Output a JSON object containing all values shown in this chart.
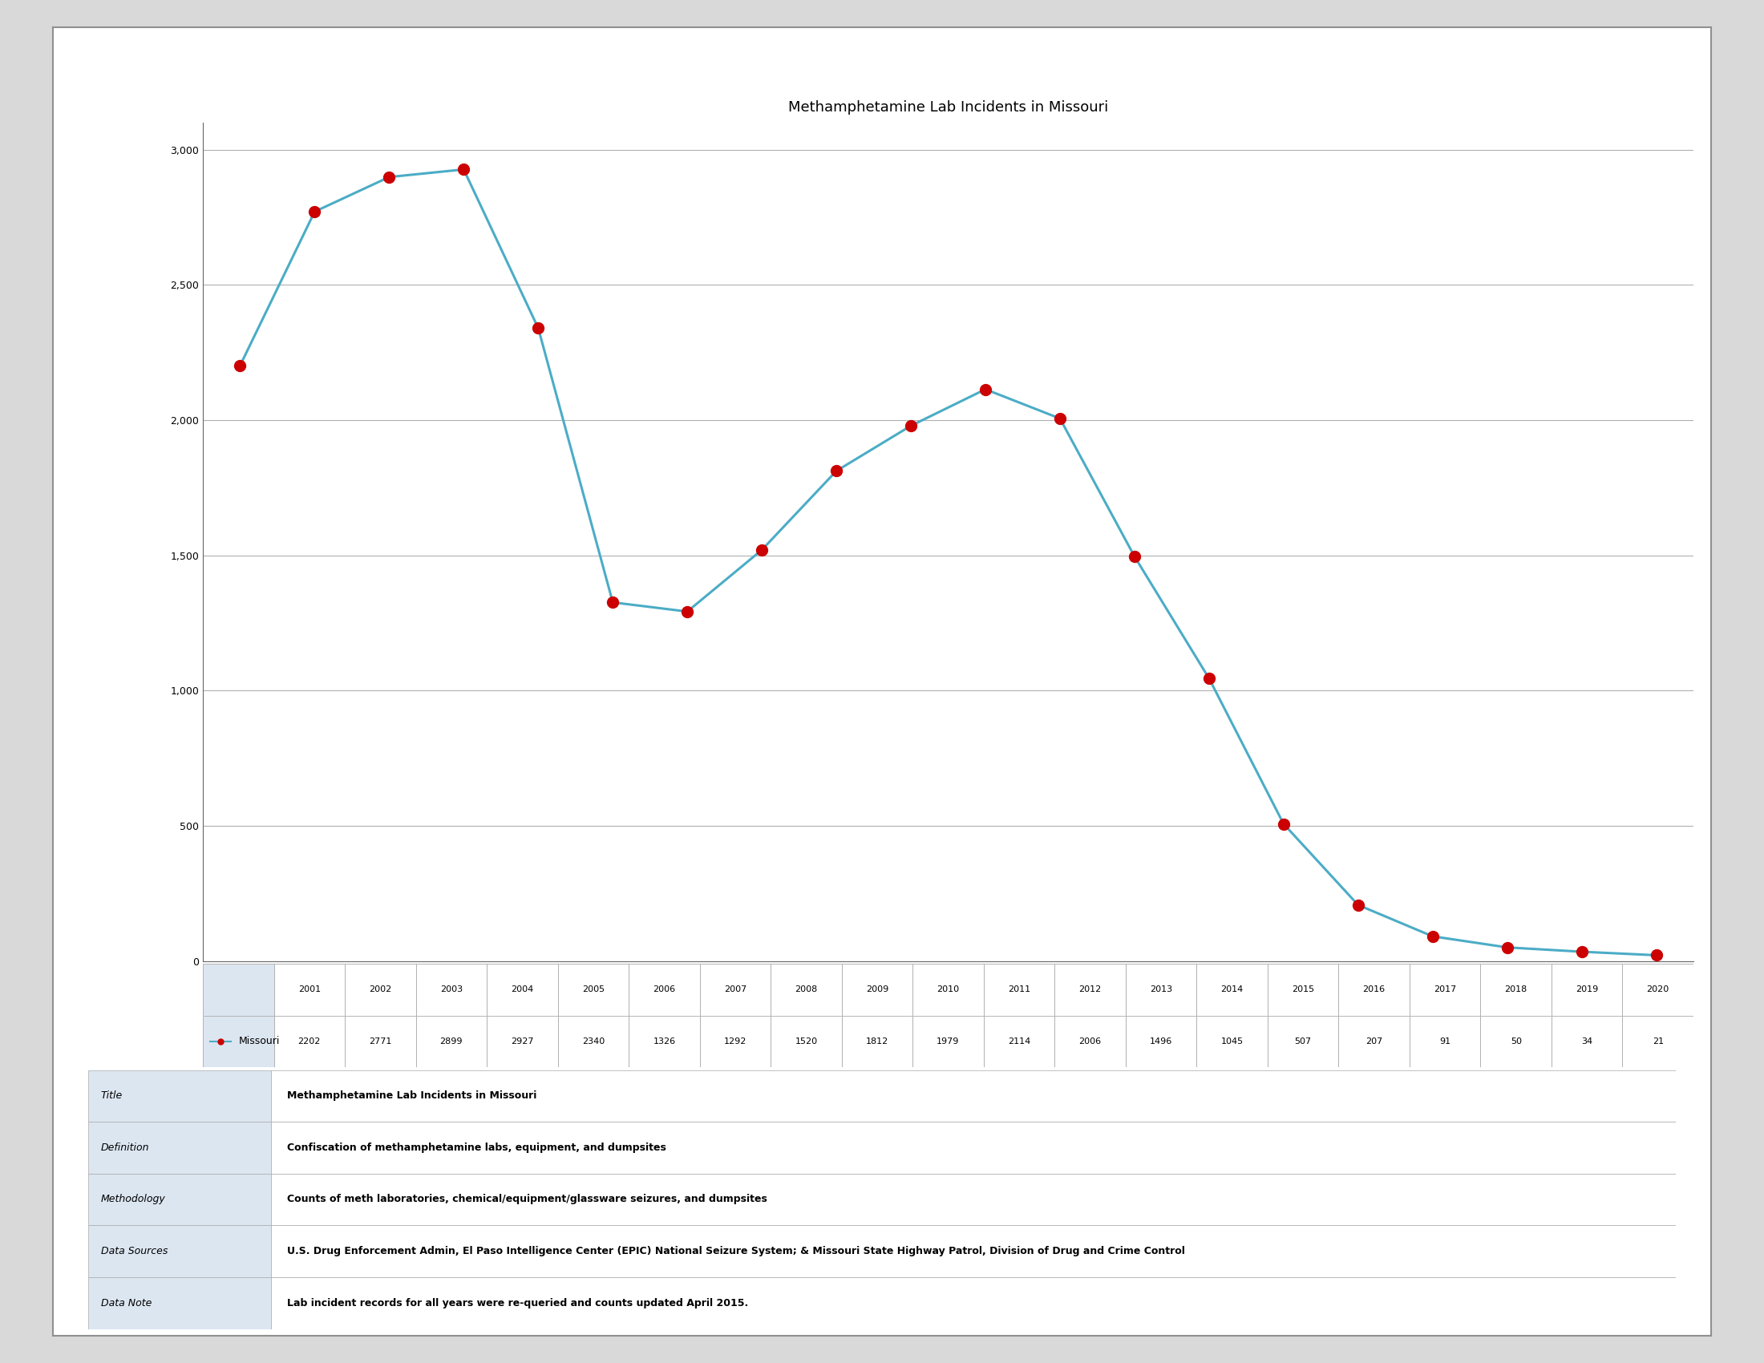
{
  "title": "Methamphetamine Lab Incidents in Missouri",
  "years": [
    2001,
    2002,
    2003,
    2004,
    2005,
    2006,
    2007,
    2008,
    2009,
    2010,
    2011,
    2012,
    2013,
    2014,
    2015,
    2016,
    2017,
    2018,
    2019,
    2020
  ],
  "values": [
    2202,
    2771,
    2899,
    2927,
    2340,
    1326,
    1292,
    1520,
    1812,
    1979,
    2114,
    2006,
    1496,
    1045,
    507,
    207,
    91,
    50,
    34,
    21
  ],
  "line_color": "#4bacc6",
  "marker_color": "#cc0000",
  "marker_size": 10,
  "line_width": 2.2,
  "ylim": [
    0,
    3100
  ],
  "yticks": [
    0,
    500,
    1000,
    1500,
    2000,
    2500,
    3000
  ],
  "background_color": "#ffffff",
  "outer_bg": "#d9d9d9",
  "inner_bg": "#ffffff",
  "grid_color": "#b0b0b0",
  "border_color": "#909090",
  "legend_label": "Missouri",
  "table_label_col": [
    "Title",
    "Definition",
    "Methodology",
    "Data Sources",
    "Data Note"
  ],
  "table_value_col": [
    "Methamphetamine Lab Incidents in Missouri",
    "Confiscation of methamphetamine labs, equipment, and dumpsites",
    "Counts of meth laboratories, chemical/equipment/glassware seizures, and dumpsites",
    "U.S. Drug Enforcement Admin, El Paso Intelligence Center (EPIC) National Seizure System; & Missouri State Highway Patrol, Division of Drug and Crime Control",
    "Lab incident records for all years were re-queried and counts updated April 2015."
  ],
  "table_label_bg": "#dce6f1",
  "title_fontsize": 13,
  "tick_label_fontsize": 9,
  "table_fontsize": 9,
  "meta_label_fontsize": 9,
  "meta_value_fontsize": 9
}
